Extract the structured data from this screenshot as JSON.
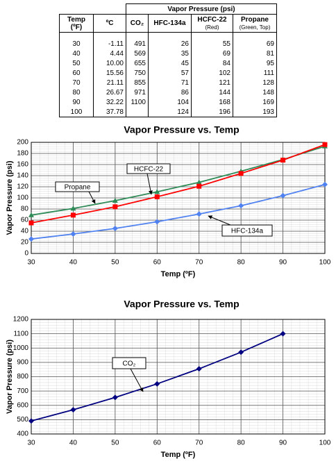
{
  "table": {
    "group_header": "Vapor Pressure (psi)",
    "columns": [
      {
        "name": "Temp (ºF)"
      },
      {
        "name": "ºC"
      },
      {
        "name": "CO₂"
      },
      {
        "name": "HFC-134a"
      },
      {
        "name": "HCFC-22",
        "note": "(Red)"
      },
      {
        "name": "Propane",
        "note": "(Green, Top)"
      }
    ],
    "rows": [
      [
        "30",
        "-1.11",
        "491",
        "26",
        "55",
        "69"
      ],
      [
        "40",
        "4.44",
        "569",
        "35",
        "69",
        "81"
      ],
      [
        "50",
        "10.00",
        "655",
        "45",
        "84",
        "95"
      ],
      [
        "60",
        "15.56",
        "750",
        "57",
        "102",
        "111"
      ],
      [
        "70",
        "21.11",
        "855",
        "71",
        "121",
        "128"
      ],
      [
        "80",
        "26.67",
        "971",
        "86",
        "144",
        "148"
      ],
      [
        "90",
        "32.22",
        "1100",
        "104",
        "168",
        "169"
      ],
      [
        "100",
        "37.78",
        null,
        "124",
        "196",
        "193"
      ]
    ]
  },
  "chart_data": [
    {
      "type": "line",
      "title": "Vapor Pressure vs. Temp",
      "xlabel": "Temp (ºF)",
      "ylabel": "Vapor Pressure (psi)",
      "x": [
        30,
        40,
        50,
        60,
        70,
        80,
        90,
        100
      ],
      "series": [
        {
          "name": "Propane",
          "color": "#2e8b57",
          "marker": "triangle",
          "values": [
            69,
            81,
            95,
            111,
            128,
            148,
            169,
            193
          ]
        },
        {
          "name": "HCFC-22",
          "color": "#ff0000",
          "marker": "square",
          "values": [
            55,
            69,
            84,
            102,
            121,
            144,
            168,
            196
          ]
        },
        {
          "name": "HFC-134a",
          "color": "#4f81f0",
          "marker": "diamond",
          "values": [
            26,
            35,
            45,
            57,
            71,
            86,
            104,
            124
          ]
        }
      ],
      "xlim": [
        30,
        100
      ],
      "xticks": [
        30,
        40,
        50,
        60,
        70,
        80,
        90,
        100
      ],
      "ylim": [
        0,
        200
      ],
      "yticks": [
        0,
        20,
        40,
        60,
        80,
        100,
        120,
        140,
        160,
        180,
        200
      ],
      "grid": true,
      "minor_grid": true
    },
    {
      "type": "line",
      "title": "Vapor Pressure vs. Temp",
      "xlabel": "Temp (ºF)",
      "ylabel": "Vapor Pressure (psi)",
      "x": [
        30,
        40,
        50,
        60,
        70,
        80,
        90
      ],
      "series": [
        {
          "name": "CO₂",
          "color": "#000080",
          "marker": "diamond",
          "values": [
            491,
            569,
            655,
            750,
            855,
            971,
            1100
          ]
        }
      ],
      "xlim": [
        30,
        100
      ],
      "xticks": [
        30,
        40,
        50,
        60,
        70,
        80,
        90,
        100
      ],
      "ylim": [
        400,
        1200
      ],
      "yticks": [
        400,
        500,
        600,
        700,
        800,
        900,
        1000,
        1100,
        1200
      ],
      "grid": true,
      "minor_grid": true
    }
  ]
}
